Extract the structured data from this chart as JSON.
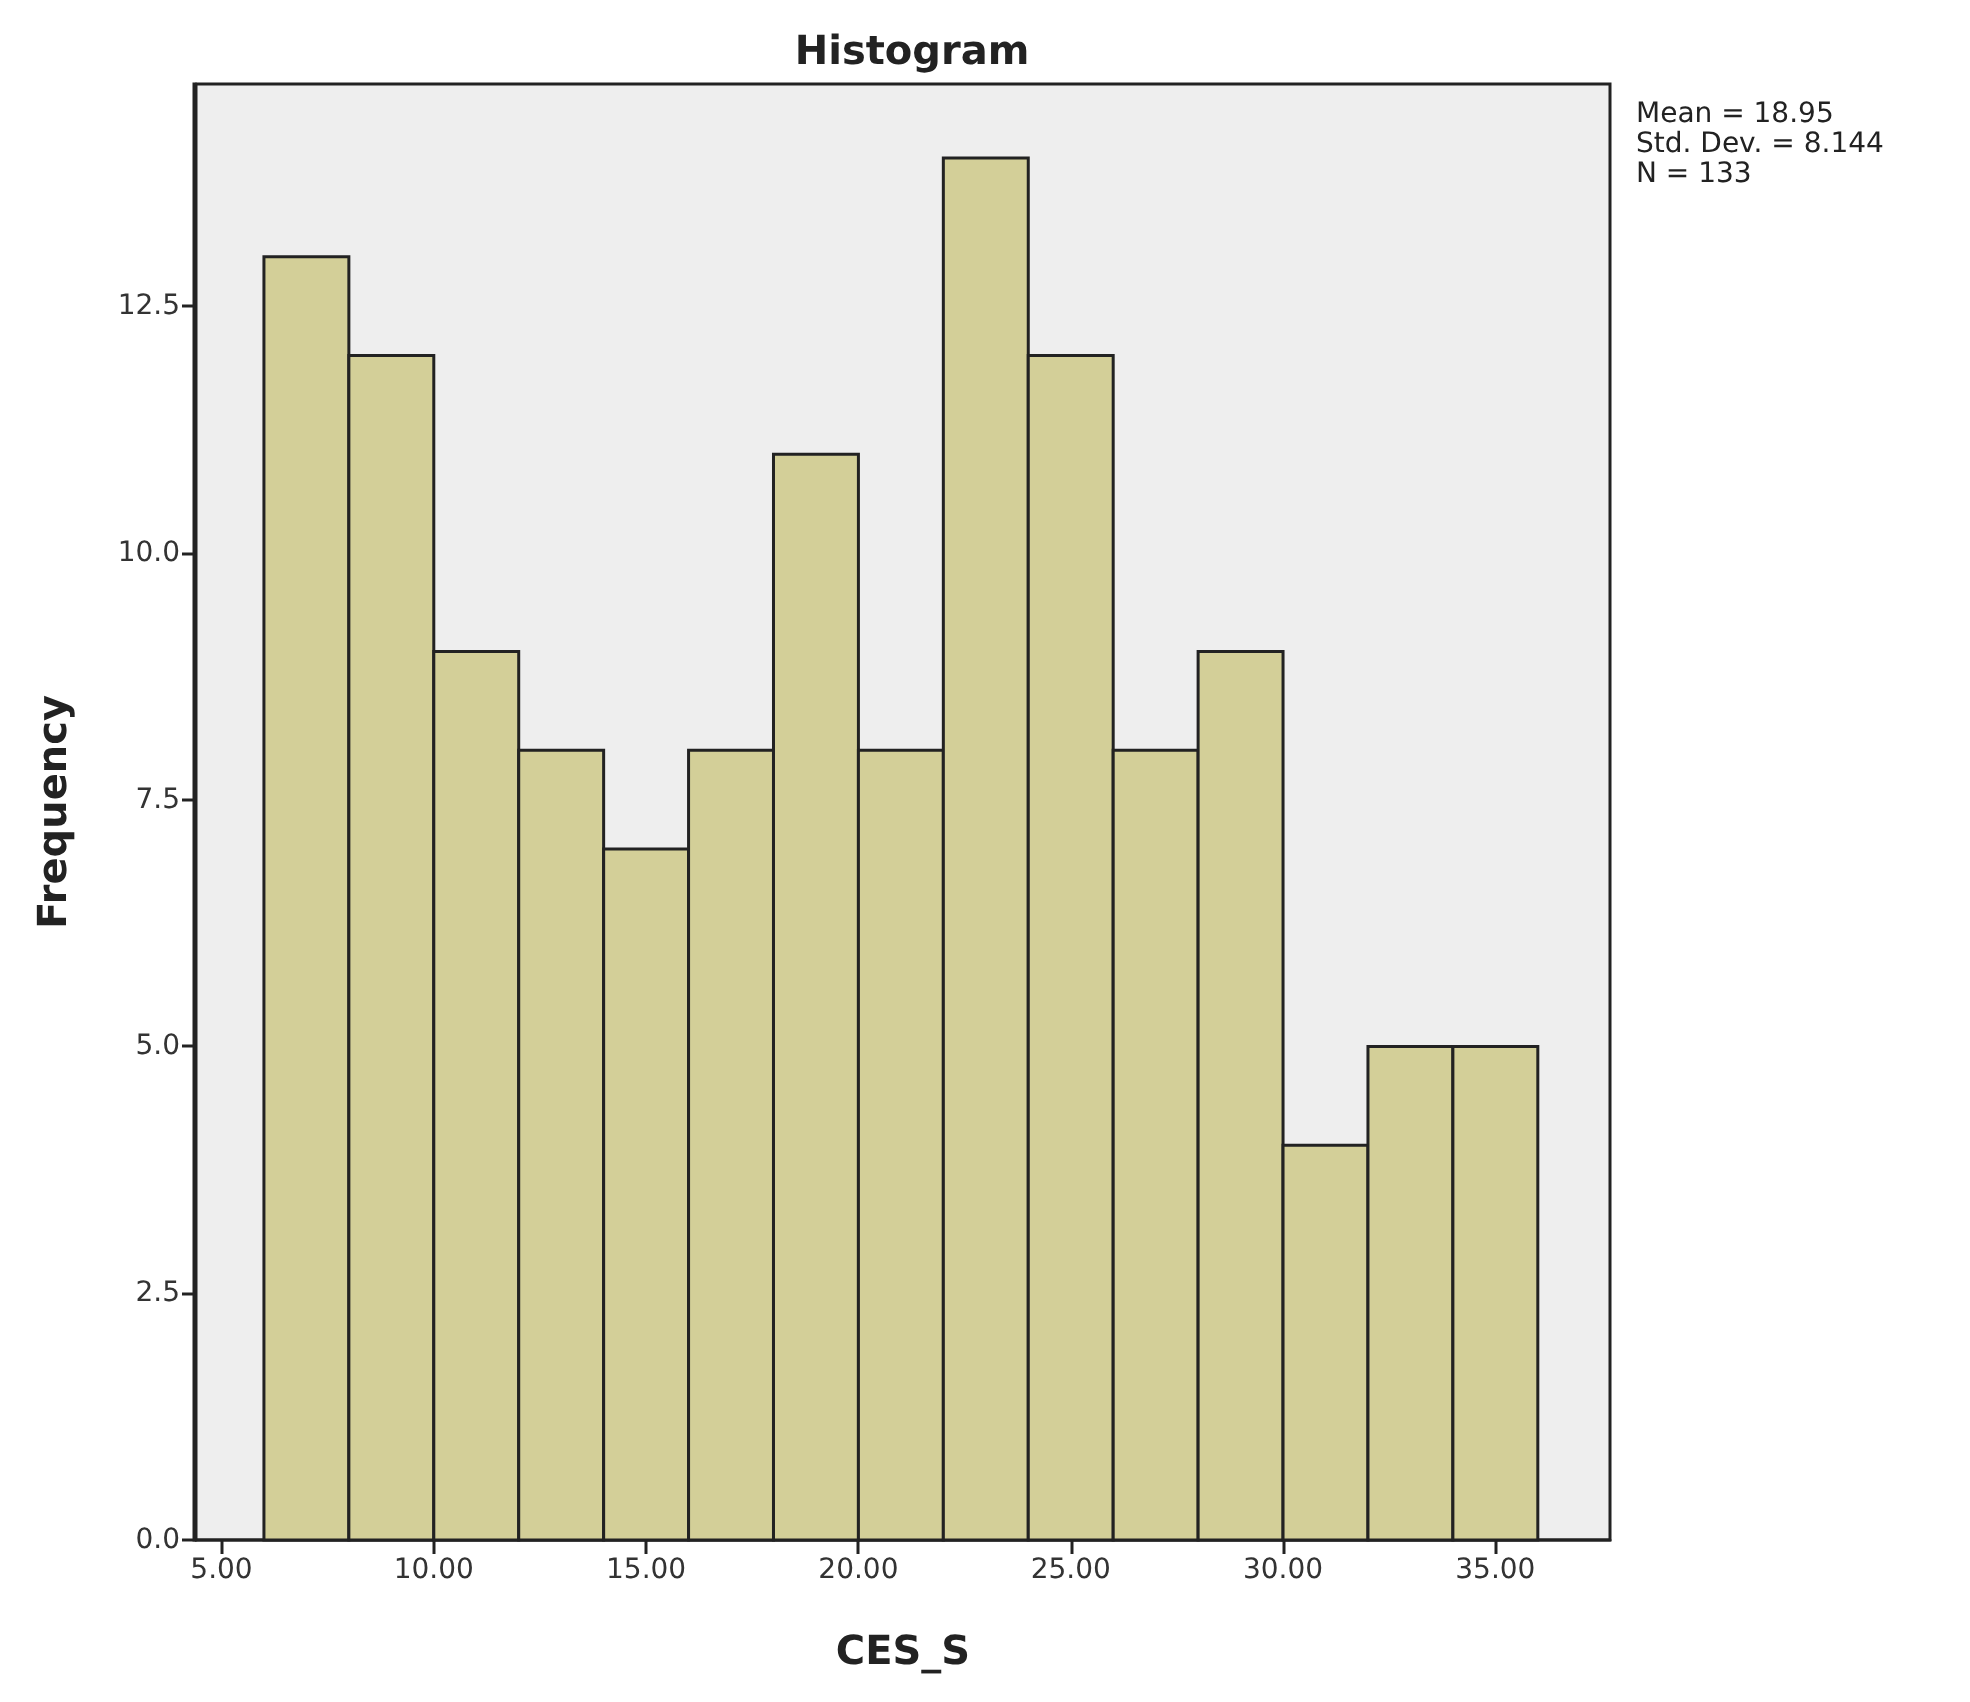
{
  "chart_data": {
    "type": "histogram",
    "title": "Histogram",
    "xlabel": "CES_S",
    "ylabel": "Frequency",
    "bins": [
      6,
      8,
      10,
      12,
      14,
      16,
      18,
      20,
      22,
      24,
      26,
      28,
      30,
      32,
      34,
      36
    ],
    "values": [
      13,
      12,
      9,
      8,
      7,
      8,
      11,
      8,
      14,
      12,
      8,
      9,
      4,
      5,
      5
    ],
    "color": "#d3cf98",
    "xlim": [
      4.4,
      37.7
    ],
    "xticks": [
      {
        "value": 5,
        "label": "5.00"
      },
      {
        "value": 10,
        "label": "10.00"
      },
      {
        "value": 15,
        "label": "15.00"
      },
      {
        "value": 20,
        "label": "20.00"
      },
      {
        "value": 25,
        "label": "25.00"
      },
      {
        "value": 30,
        "label": "30.00"
      },
      {
        "value": 35,
        "label": "35.00"
      }
    ],
    "ylim": [
      0,
      14.75
    ],
    "yticks": [
      {
        "value": 0,
        "label": "0.0"
      },
      2.5,
      {
        "value": 5,
        "label": "5.0"
      },
      7.5,
      {
        "value": 10,
        "label": "10.0"
      },
      12.5
    ],
    "annotations": [
      "Mean = 18.95",
      "Std. Dev. = 8.144",
      "N = 133"
    ]
  }
}
